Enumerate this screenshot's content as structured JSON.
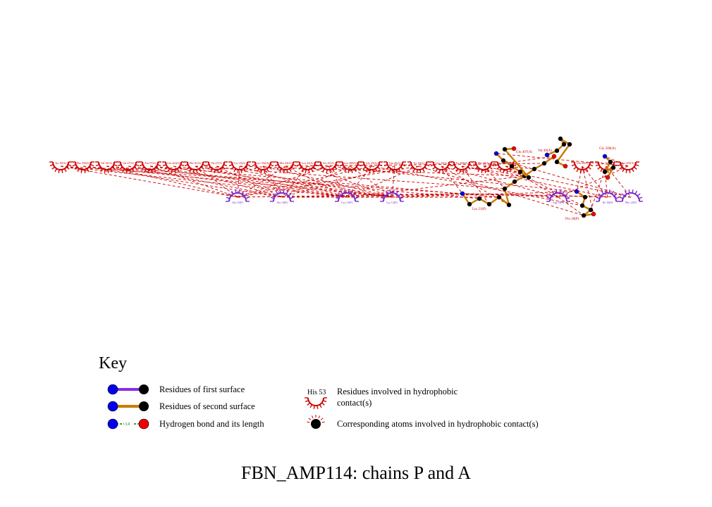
{
  "title": "FBN_AMP114: chains P and A",
  "colors": {
    "chain_a_arc": "#cc0000",
    "chain_p_arc": "#7a2bcc",
    "contact_line": "#cc0000",
    "bond_first_surface": "#8a2be2",
    "bond_second_surface": "#cc7a00",
    "hbond": "#008000",
    "atom_n": "#0000ee",
    "atom_c": "#000000",
    "atom_o": "#ee0000"
  },
  "residues_top": [
    "Tyr 49(A)",
    "Phe 436(A)",
    "Val 45(A)",
    "Val 47(A)",
    "Ala 47(A)",
    "Glu 424(A)",
    "Phe 61(A)",
    "Val 47(A)",
    "Cys 43(A)",
    "Lys 302(A)",
    "Met 43(A)",
    "Leu 43(A)",
    "Ser 43(A)",
    "Leu 489(A)",
    "Gly 43(A)",
    "Gln 46(A)",
    "Tyr 42(A)",
    "Leu 42(A)",
    "Tyr 496(A)",
    "Phe 49(A)",
    "Leu 498(A)",
    "Gln 50(A)",
    "Tyr 50(A)",
    "Ser 505(A)"
  ],
  "residues_bottom": [
    "Ala 15(P)",
    "Ala 14(P)",
    "Lys 13(P)",
    "Lys 12(P)",
    "Arg 19(P)",
    "Ile 16(P)",
    "Phe 12(P)"
  ],
  "ligand_labels": {
    "glu": "Glu 497(A)",
    "val": "Val 49(A)",
    "gly": "Gly 500(A)",
    "lys": "Lys 21(P)",
    "pro": "Pro 20(P)"
  },
  "key": {
    "heading": "Key",
    "first_surface": "Residues of first surface",
    "second_surface": "Residues of second surface",
    "hbond": "Hydrogen bond and its length",
    "hbond_length": "3.0",
    "hydrophobic_example": "His 53",
    "hydrophobic_line1": "Residues involved in hydrophobic",
    "hydrophobic_line2": "contact(s)",
    "corresponding_atoms": "Corresponding atoms involved in hydrophobic contact(s)"
  }
}
